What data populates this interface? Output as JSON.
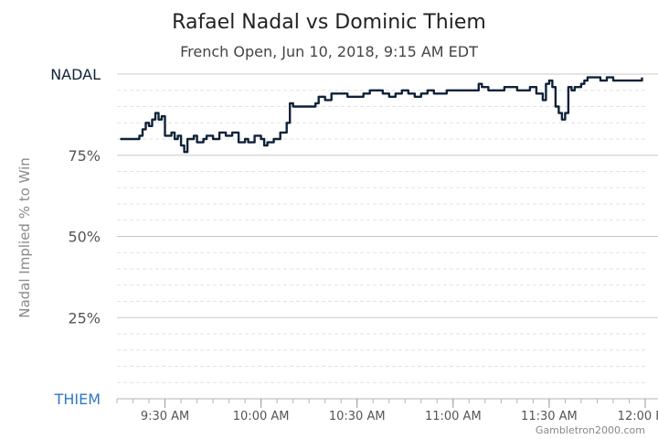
{
  "title": "Rafael Nadal vs Dominic Thiem",
  "subtitle": "French Open, Jun 10, 2018, 9:15 AM EDT",
  "ylabel": "Nadal Implied % to Win",
  "credit": "Gambletron2000.com",
  "colors": {
    "line": "#0f2238",
    "nadal_label": "#0f2238",
    "thiem_label": "#2f78c2",
    "major_grid": "#c8c8c8",
    "minor_grid": "#e2e2e2",
    "tick_text": "#555555",
    "title_text": "#222222"
  },
  "chart_data": {
    "type": "line",
    "title": "Rafael Nadal vs Dominic Thiem",
    "subtitle": "French Open, Jun 10, 2018, 9:15 AM EDT",
    "xlabel": "",
    "ylabel": "Nadal Implied % to Win",
    "ylim": [
      0,
      100
    ],
    "xlim": [
      "9:15 AM",
      "12:00 PM"
    ],
    "grid": true,
    "y_ticks": [
      {
        "value": 100,
        "label": "NADAL"
      },
      {
        "value": 75,
        "label": "75%"
      },
      {
        "value": 50,
        "label": "50%"
      },
      {
        "value": 25,
        "label": "25%"
      },
      {
        "value": 0,
        "label": "THIEM"
      }
    ],
    "x_ticks": [
      {
        "value": "9:30 AM",
        "label": "9:30 AM"
      },
      {
        "value": "10:00 AM",
        "label": "10:00 AM"
      },
      {
        "value": "10:30 AM",
        "label": "10:30 AM"
      },
      {
        "value": "11:00 AM",
        "label": "11:00 AM"
      },
      {
        "value": "11:30 AM",
        "label": "11:30 AM"
      },
      {
        "value": "12:00 PM",
        "label": "12:00 PM"
      }
    ],
    "x": [
      "9:16 AM",
      "9:22 AM",
      "9:23 AM",
      "9:24 AM",
      "9:25 AM",
      "9:26 AM",
      "9:27 AM",
      "9:28 AM",
      "9:29 AM",
      "9:30 AM",
      "9:31 AM",
      "9:32 AM",
      "9:33 AM",
      "9:34 AM",
      "9:35 AM",
      "9:36 AM",
      "9:37 AM",
      "9:38 AM",
      "9:39 AM",
      "9:40 AM",
      "9:42 AM",
      "9:43 AM",
      "9:45 AM",
      "9:47 AM",
      "9:49 AM",
      "9:51 AM",
      "9:53 AM",
      "9:55 AM",
      "9:56 AM",
      "9:58 AM",
      "10:00 AM",
      "10:01 AM",
      "10:02 AM",
      "10:04 AM",
      "10:06 AM",
      "10:08 AM",
      "10:09 AM",
      "10:10 AM",
      "10:11 AM",
      "10:12 AM",
      "10:14 AM",
      "10:17 AM",
      "10:18 AM",
      "10:20 AM",
      "10:22 AM",
      "10:23 AM",
      "10:25 AM",
      "10:27 AM",
      "10:28 AM",
      "10:30 AM",
      "10:32 AM",
      "10:34 AM",
      "10:36 AM",
      "10:38 AM",
      "10:40 AM",
      "10:42 AM",
      "10:44 AM",
      "10:46 AM",
      "10:48 AM",
      "10:50 AM",
      "10:52 AM",
      "10:54 AM",
      "10:56 AM",
      "10:58 AM",
      "11:00 AM",
      "11:03 AM",
      "11:06 AM",
      "11:08 AM",
      "11:09 AM",
      "11:11 AM",
      "11:13 AM",
      "11:16 AM",
      "11:18 AM",
      "11:20 AM",
      "11:22 AM",
      "11:24 AM",
      "11:26 AM",
      "11:28 AM",
      "11:29 AM",
      "11:30 AM",
      "11:31 AM",
      "11:32 AM",
      "11:33 AM",
      "11:34 AM",
      "11:35 AM",
      "11:36 AM",
      "11:37 AM",
      "11:38 AM",
      "11:40 AM",
      "11:41 AM",
      "11:42 AM",
      "11:44 AM",
      "11:46 AM",
      "11:48 AM",
      "11:50 AM",
      "11:52 AM",
      "11:54 AM",
      "11:56 AM",
      "11:57 AM",
      "11:59 AM"
    ],
    "series": [
      {
        "values": [
          80,
          81,
          83,
          85,
          84,
          86,
          88,
          86,
          87,
          81,
          81,
          82,
          80,
          81,
          78,
          76,
          80,
          80,
          81,
          79,
          80,
          81,
          80,
          82,
          81,
          82,
          79,
          80,
          79,
          81,
          80,
          78,
          79,
          80,
          82,
          85,
          91,
          90,
          90,
          90,
          90,
          91,
          93,
          92,
          94,
          94,
          94,
          93,
          93,
          93,
          94,
          95,
          95,
          94,
          93,
          94,
          95,
          94,
          93,
          94,
          95,
          94,
          94,
          95,
          95,
          95,
          95,
          97,
          96,
          95,
          95,
          96,
          96,
          95,
          95,
          96,
          94,
          92,
          97,
          98,
          96,
          90,
          88,
          86,
          88,
          96,
          95,
          96,
          97,
          98,
          99,
          99,
          98,
          99,
          98,
          98,
          98,
          98,
          98,
          99
        ]
      }
    ]
  }
}
